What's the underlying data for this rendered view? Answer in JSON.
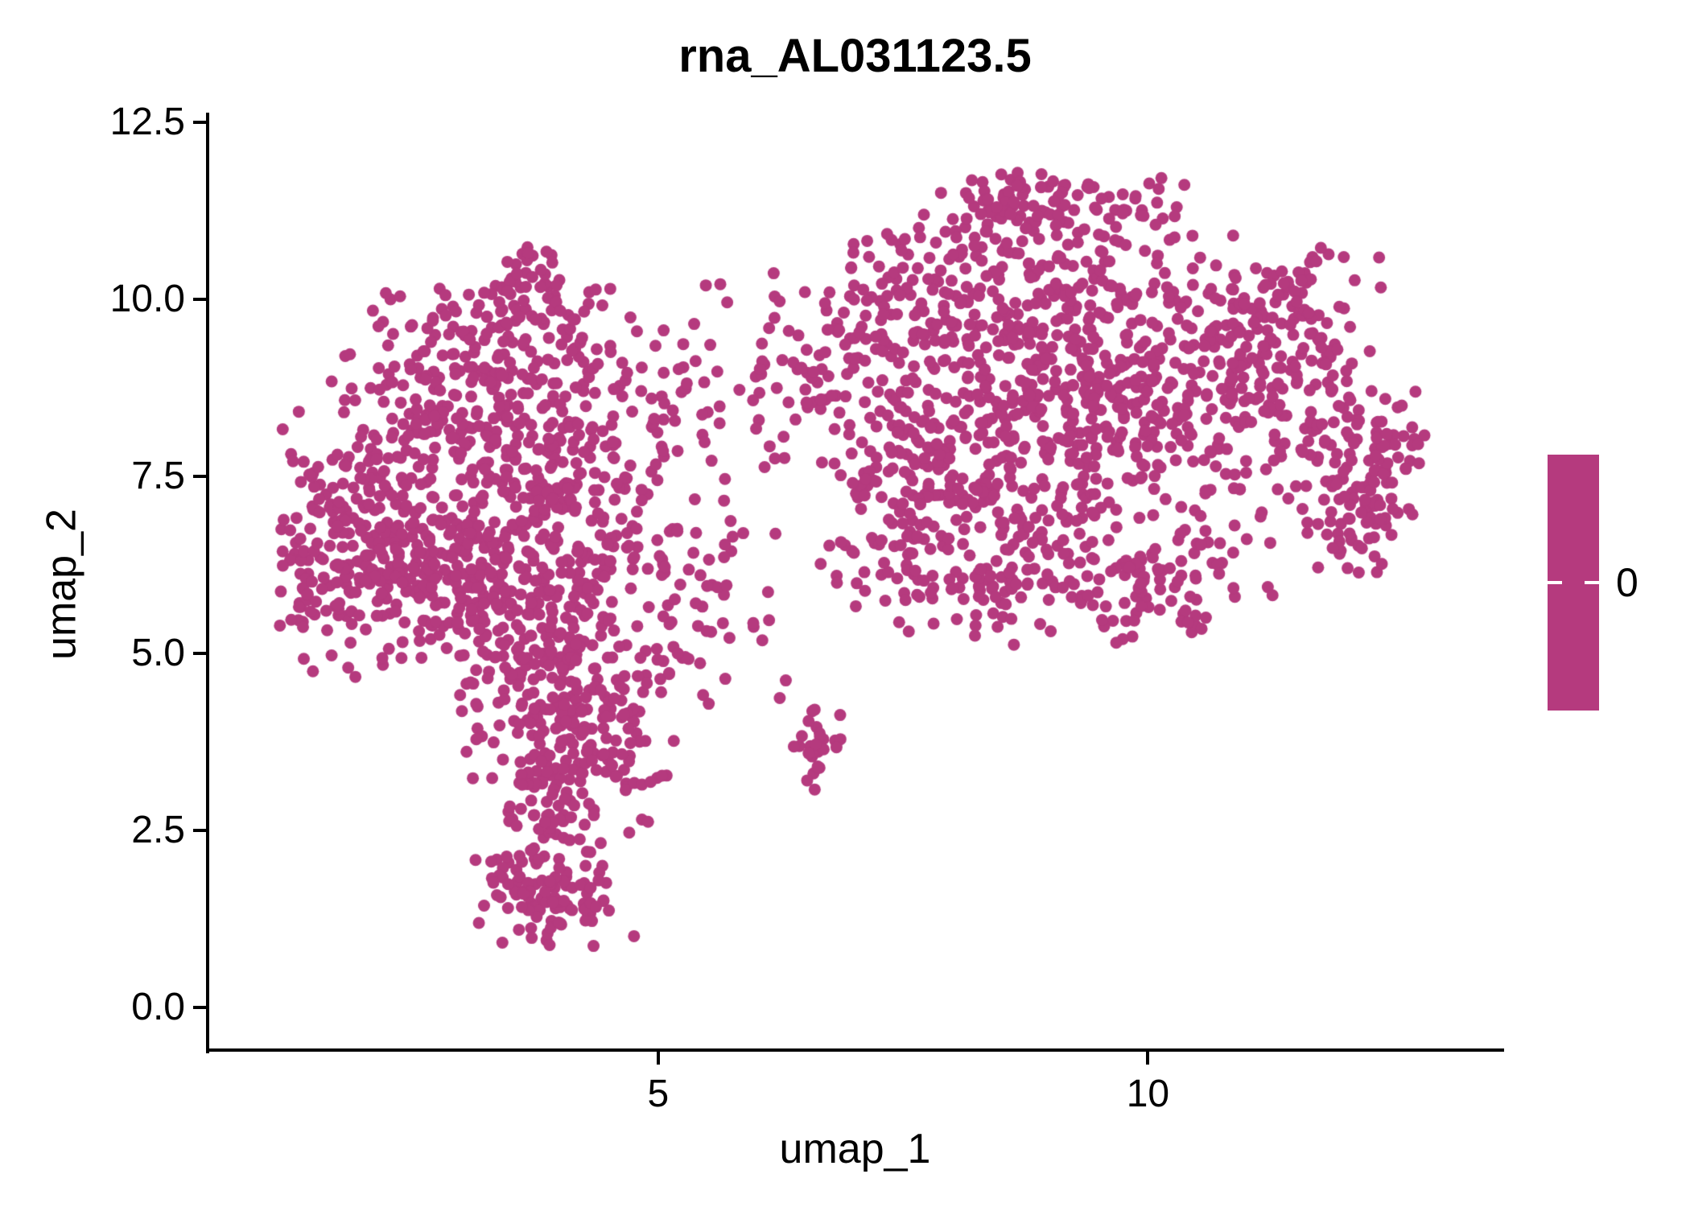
{
  "title": "rna_AL031123.5",
  "colors": {
    "point": "#b53a7e",
    "colorbar": "#b53a7e",
    "axis": "#000000",
    "text": "#000000",
    "background": "#ffffff"
  },
  "legend": {
    "label": "0"
  },
  "chart_data": {
    "type": "scatter",
    "title": "rna_AL031123.5",
    "xlabel": "umap_1",
    "ylabel": "umap_2",
    "xlim": [
      0.4,
      13.62
    ],
    "ylim": [
      -0.6,
      12.64
    ],
    "grid": false,
    "x_ticks": [
      {
        "v": 5,
        "label": "5"
      },
      {
        "v": 10,
        "label": "10"
      }
    ],
    "y_ticks": [
      {
        "v": 0,
        "label": "0.0"
      },
      {
        "v": 2.5,
        "label": "2.5"
      },
      {
        "v": 5,
        "label": "5.0"
      },
      {
        "v": 7.5,
        "label": "7.5"
      },
      {
        "v": 10,
        "label": "10.0"
      },
      {
        "v": 12.5,
        "label": "12.5"
      }
    ],
    "legend": {
      "type": "colorbar",
      "label": "0",
      "single_value": 0,
      "color": "#b53a7e",
      "position": "right"
    },
    "point_radius_px": 7.5,
    "n_points_approx": 3100,
    "seed": 7,
    "clusters": [
      {
        "name": "left-core",
        "n": 480,
        "cx": 3.25,
        "cy": 6.35,
        "sx": 0.95,
        "sy": 0.85,
        "clamp": [
          1.3,
          5.6,
          4.6,
          8.2
        ]
      },
      {
        "name": "left-upper",
        "n": 340,
        "cx": 3.45,
        "cy": 8.55,
        "sx": 0.9,
        "sy": 0.75,
        "clamp": [
          1.6,
          5.6,
          6.8,
          10.2
        ]
      },
      {
        "name": "left-west",
        "n": 160,
        "cx": 1.9,
        "cy": 6.5,
        "sx": 0.6,
        "sy": 0.8,
        "clamp": [
          1.05,
          3.2,
          4.8,
          8.6
        ]
      },
      {
        "name": "left-top-clump",
        "n": 26,
        "cx": 3.7,
        "cy": 10.4,
        "sx": 0.17,
        "sy": 0.22,
        "clamp": [
          3.3,
          4.1,
          10.0,
          10.75
        ]
      },
      {
        "name": "left-top-fringe",
        "n": 55,
        "cx": 3.3,
        "cy": 9.75,
        "sx": 0.6,
        "sy": 0.3,
        "clamp": [
          2.2,
          4.6,
          9.2,
          10.3
        ]
      },
      {
        "name": "left-funnel",
        "n": 150,
        "cx": 4.05,
        "cy": 4.6,
        "sx": 0.6,
        "sy": 0.55,
        "clamp": [
          2.9,
          5.3,
          3.4,
          5.6
        ]
      },
      {
        "name": "left-lower",
        "n": 120,
        "cx": 4.15,
        "cy": 3.55,
        "sx": 0.5,
        "sy": 0.5,
        "clamp": [
          3.0,
          5.2,
          2.4,
          4.6
        ]
      },
      {
        "name": "tail-bottom",
        "n": 95,
        "cx": 3.85,
        "cy": 1.55,
        "sx": 0.4,
        "sy": 0.38,
        "clamp": [
          3.1,
          4.8,
          0.85,
          2.3
        ]
      },
      {
        "name": "tail-neck",
        "n": 35,
        "cx": 3.8,
        "cy": 2.5,
        "sx": 0.3,
        "sy": 0.4,
        "clamp": [
          3.2,
          4.5,
          1.6,
          3.2
        ]
      },
      {
        "name": "left-east-fringe",
        "n": 55,
        "cx": 5.35,
        "cy": 5.8,
        "sx": 0.5,
        "sy": 0.8,
        "clamp": [
          4.6,
          6.2,
          4.2,
          7.4
        ]
      },
      {
        "name": "bridge-upper-w",
        "n": 50,
        "cx": 5.9,
        "cy": 8.9,
        "sx": 0.55,
        "sy": 0.75,
        "clamp": [
          5.0,
          7.0,
          7.4,
          10.4
        ]
      },
      {
        "name": "isolated-small",
        "n": 28,
        "cx": 6.62,
        "cy": 3.6,
        "sx": 0.14,
        "sy": 0.34,
        "clamp": [
          6.3,
          6.95,
          2.95,
          4.25
        ]
      },
      {
        "name": "isolated-outliers",
        "n": 2,
        "cx": 6.33,
        "cy": 4.45,
        "sx": 0.1,
        "sy": 0.1,
        "clamp": [
          6.15,
          6.55,
          4.3,
          4.65
        ]
      },
      {
        "name": "bridge-upper-e",
        "n": 45,
        "cx": 6.7,
        "cy": 9.0,
        "sx": 0.5,
        "sy": 0.8,
        "clamp": [
          5.9,
          7.5,
          7.3,
          10.5
        ]
      },
      {
        "name": "right-core",
        "n": 580,
        "cx": 9.3,
        "cy": 8.55,
        "sx": 1.15,
        "sy": 1.0,
        "clamp": [
          7.0,
          11.9,
          5.8,
          11.1
        ]
      },
      {
        "name": "right-top-band",
        "n": 110,
        "cx": 9.0,
        "cy": 11.35,
        "sx": 0.7,
        "sy": 0.27,
        "clamp": [
          7.6,
          10.4,
          10.85,
          11.8
        ]
      },
      {
        "name": "right-upper",
        "n": 130,
        "cx": 8.7,
        "cy": 10.35,
        "sx": 0.85,
        "sy": 0.5,
        "clamp": [
          6.9,
          10.6,
          9.3,
          11.2
        ]
      },
      {
        "name": "right-left-lobe",
        "n": 150,
        "cx": 7.7,
        "cy": 6.9,
        "sx": 0.6,
        "sy": 0.85,
        "clamp": [
          6.6,
          8.9,
          5.2,
          8.6
        ]
      },
      {
        "name": "right-bottom-band",
        "n": 160,
        "cx": 9.6,
        "cy": 5.95,
        "sx": 1.0,
        "sy": 0.5,
        "clamp": [
          7.4,
          11.4,
          5.0,
          7.0
        ]
      },
      {
        "name": "right-ne",
        "n": 110,
        "cx": 11.15,
        "cy": 9.8,
        "sx": 0.6,
        "sy": 0.55,
        "clamp": [
          9.9,
          12.4,
          8.6,
          11.0
        ]
      },
      {
        "name": "right-arm-clump",
        "n": 105,
        "cx": 12.15,
        "cy": 7.3,
        "sx": 0.35,
        "sy": 0.6,
        "clamp": [
          11.4,
          12.75,
          6.1,
          8.5
        ]
      },
      {
        "name": "right-arm-upper",
        "n": 60,
        "cx": 11.6,
        "cy": 8.7,
        "sx": 0.5,
        "sy": 0.5,
        "clamp": [
          10.6,
          12.6,
          7.6,
          9.8
        ]
      },
      {
        "name": "right-arm-tip",
        "n": 25,
        "cx": 12.55,
        "cy": 7.8,
        "sx": 0.18,
        "sy": 0.4,
        "clamp": [
          12.1,
          12.85,
          6.9,
          8.7
        ]
      },
      {
        "name": "right-nw-fringe",
        "n": 65,
        "cx": 7.45,
        "cy": 9.8,
        "sx": 0.5,
        "sy": 0.55,
        "clamp": [
          6.5,
          8.4,
          8.8,
          10.9
        ]
      }
    ]
  }
}
